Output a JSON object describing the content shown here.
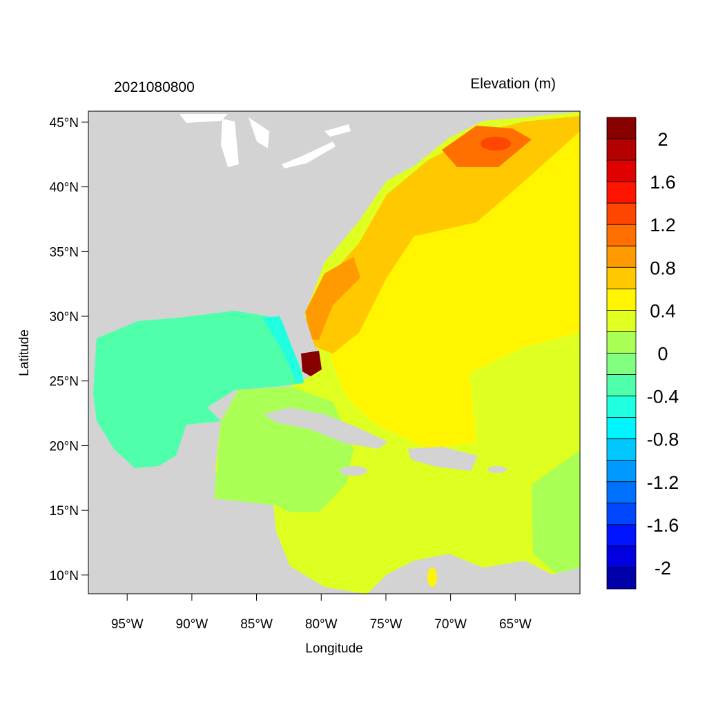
{
  "header": {
    "timestamp": "2021080800",
    "variable": "Elevation (m)"
  },
  "axes": {
    "xlabel": "Longitude",
    "ylabel": "Latitude",
    "x_ticks": [
      {
        "value": -95,
        "label": "95°W"
      },
      {
        "value": -90,
        "label": "90°W"
      },
      {
        "value": -85,
        "label": "85°W"
      },
      {
        "value": -80,
        "label": "80°W"
      },
      {
        "value": -75,
        "label": "75°W"
      },
      {
        "value": -70,
        "label": "70°W"
      },
      {
        "value": -65,
        "label": "65°W"
      }
    ],
    "y_ticks": [
      {
        "value": 45,
        "label": "45°N"
      },
      {
        "value": 40,
        "label": "40°N"
      },
      {
        "value": 35,
        "label": "35°N"
      },
      {
        "value": 30,
        "label": "30°N"
      },
      {
        "value": 25,
        "label": "25°N"
      },
      {
        "value": 20,
        "label": "20°N"
      },
      {
        "value": 15,
        "label": "15°N"
      },
      {
        "value": 10,
        "label": "10°N"
      }
    ],
    "lon_range": [
      -98,
      -60
    ],
    "lat_range": [
      8.55,
      45.85
    ]
  },
  "colorbar": {
    "min": -2.2,
    "max": 2.2,
    "step": 0.2,
    "colors_top_to_bottom": [
      "#870000",
      "#B40000",
      "#E00000",
      "#FF1400",
      "#FF4600",
      "#FF7000",
      "#FF9A00",
      "#FFC800",
      "#FFF500",
      "#DFFF20",
      "#AAFF55",
      "#80FF80",
      "#50FFAA",
      "#20FFDF",
      "#00F5FF",
      "#00C8FF",
      "#0099FF",
      "#0070FF",
      "#0046FF",
      "#0014FF",
      "#0000E0",
      "#0000AA"
    ],
    "labels": [
      {
        "value": 2,
        "label": "2"
      },
      {
        "value": 1.6,
        "label": "1.6"
      },
      {
        "value": 1.2,
        "label": "1.2"
      },
      {
        "value": 0.8,
        "label": "0.8"
      },
      {
        "value": 0.4,
        "label": "0.4"
      },
      {
        "value": 0,
        "label": "0"
      },
      {
        "value": -0.4,
        "label": "-0.4"
      },
      {
        "value": -0.8,
        "label": "-0.8"
      },
      {
        "value": -1.2,
        "label": "-1.2"
      },
      {
        "value": -1.6,
        "label": "-1.6"
      },
      {
        "value": -2,
        "label": "-2"
      }
    ]
  },
  "colors": {
    "land": "#D3D3D3",
    "gulf": "#50FFAA",
    "caribbean": "#AAFF55",
    "atlantic_south": "#DFFF20",
    "atlantic": "#FFF500",
    "shelf": "#FFC800",
    "shelf_high": "#FF9A00",
    "maine": "#FF7000",
    "surge": "#870000"
  }
}
